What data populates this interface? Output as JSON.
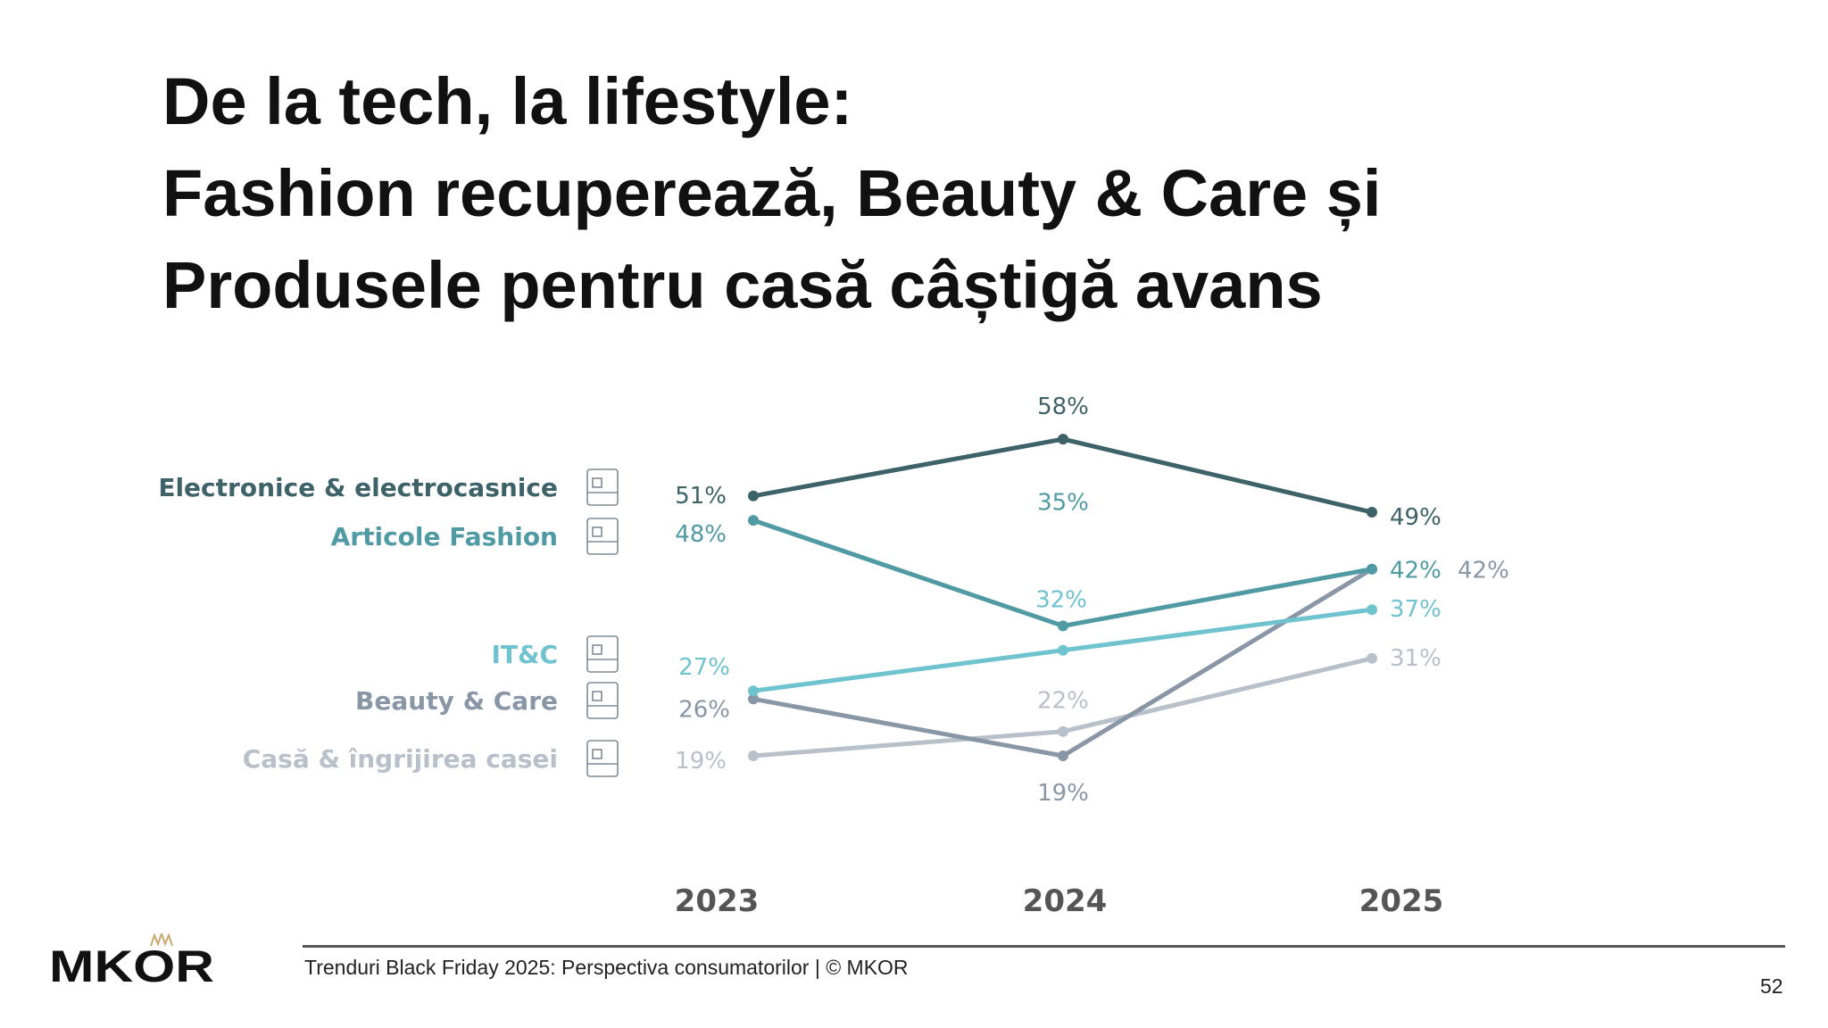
{
  "title": {
    "lines": [
      "De la tech, la lifestyle:",
      "Fashion recuperează, Beauty & Care și",
      "Produsele pentru casă câștigă avans"
    ]
  },
  "chart_data": {
    "type": "line",
    "categories": [
      "2023",
      "2024",
      "2025"
    ],
    "unit": "%",
    "grid": false,
    "legend_placement": "left",
    "series": [
      {
        "name": "Electronice & electrocasnice",
        "icon": "appliances-icon",
        "color": "#3d6268",
        "values": [
          51,
          58,
          49
        ]
      },
      {
        "name": "Articole Fashion",
        "icon": "fashion-icon",
        "color": "#4f9aa3",
        "values": [
          48,
          35,
          42
        ]
      },
      {
        "name": "IT&C",
        "icon": "devices-icon",
        "color": "#6fc3cf",
        "values": [
          27,
          32,
          37
        ]
      },
      {
        "name": "Beauty & Care",
        "icon": "cosmetics-icon",
        "color": "#8896a6",
        "values": [
          26,
          19,
          42
        ]
      },
      {
        "name": "Casă & îngrijirea casei",
        "icon": "cleaning-basket-icon",
        "color": "#b8c0ca",
        "values": [
          19,
          22,
          31
        ]
      }
    ]
  },
  "footer": {
    "text": "Trenduri Black Friday 2025: Perspectiva consumatorilor | © MKOR",
    "page_number": "52",
    "logo": "MKOR",
    "logo_accent_color": "#c9a96e"
  }
}
